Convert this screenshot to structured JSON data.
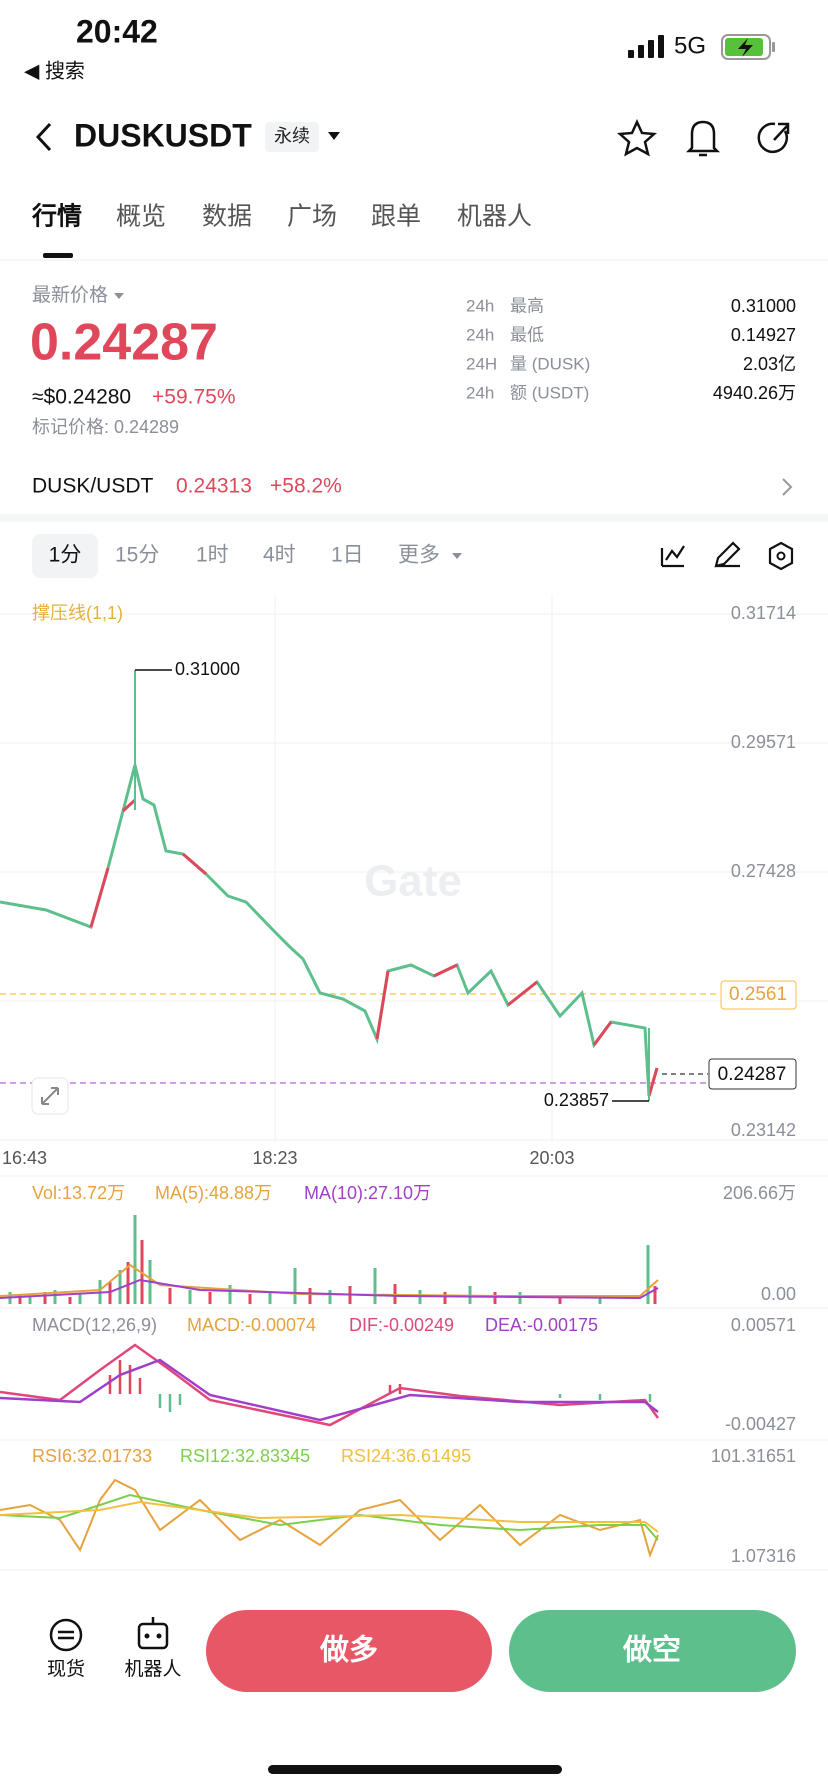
{
  "status_bar": {
    "time": "20:42",
    "back_label": "◀ 搜索",
    "network": "5G"
  },
  "header": {
    "symbol": "DUSKUSDT",
    "contract_type": "永续"
  },
  "tabs": [
    "行情",
    "概览",
    "数据",
    "广场",
    "跟单",
    "机器人"
  ],
  "price_panel": {
    "label": "最新价格",
    "last_price": "0.24287",
    "usd_price": "≈$0.24280",
    "change": "+59.75%",
    "mark_price": "标记价格: 0.24289"
  },
  "stats": [
    {
      "period": "24h",
      "label": "最高",
      "value": "0.31000"
    },
    {
      "period": "24h",
      "label": "最低",
      "value": "0.14927"
    },
    {
      "period": "24H",
      "label": "量 (DUSK)",
      "value": "2.03亿"
    },
    {
      "period": "24h",
      "label": "额 (USDT)",
      "value": "4940.26万"
    }
  ],
  "spot_pair": {
    "pair": "DUSK/USDT",
    "price": "0.24313",
    "change": "+58.2%"
  },
  "timeframes": [
    "1分",
    "15分",
    "1时",
    "4时",
    "1日",
    "更多"
  ],
  "chart": {
    "indicator_label": "撑压线(1,1)",
    "price_axis": [
      "0.31714",
      "0.29571",
      "0.27428",
      "0.23142"
    ],
    "resistance_level": "0.2561",
    "current_price": "0.24287",
    "high_marker": "0.31000",
    "low_marker": "0.23857",
    "time_axis": [
      "16:43",
      "18:23",
      "20:03"
    ],
    "watermark": "Gate"
  },
  "volume": {
    "labels": [
      "Vol:13.72万",
      "MA(5):48.88万",
      "MA(10):27.10万"
    ],
    "axis": [
      "206.66万",
      "0.00"
    ]
  },
  "macd": {
    "labels": [
      "MACD(12,26,9)",
      "MACD:-0.00074",
      "DIF:-0.00249",
      "DEA:-0.00175"
    ],
    "axis": [
      "0.00571",
      "-0.00427"
    ]
  },
  "rsi": {
    "labels": [
      "RSI6:32.01733",
      "RSI12:32.83345",
      "RSI24:36.61495"
    ],
    "axis": [
      "101.31651",
      "1.07316"
    ]
  },
  "actions": {
    "spot": "现货",
    "robot": "机器人",
    "long": "做多",
    "short": "做空"
  }
}
